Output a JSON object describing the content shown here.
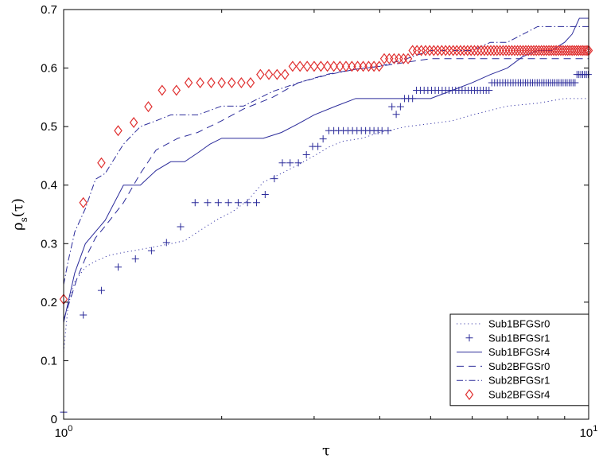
{
  "chart_data": {
    "type": "line",
    "title": "",
    "xlabel": "τ",
    "ylabel": "ρ",
    "ylabel_sub": "s",
    "ylabel_arg": "(τ)",
    "xscale": "log",
    "xlim": [
      1,
      10
    ],
    "ylim": [
      0,
      0.7
    ],
    "x_ticks": [
      {
        "value": 1,
        "base": "10",
        "exp": "0"
      },
      {
        "value": 10,
        "base": "10",
        "exp": "1"
      }
    ],
    "y_ticks": [
      0,
      0.1,
      0.2,
      0.3,
      0.4,
      0.5,
      0.6,
      0.7
    ],
    "y_tick_labels": [
      "0",
      "0.1",
      "0.2",
      "0.3",
      "0.4",
      "0.5",
      "0.6",
      "0.7"
    ],
    "grid": false,
    "legend": {
      "position": "bottom-right"
    },
    "series": [
      {
        "name": "Sub1BFGSr0",
        "style": "dotted",
        "color": "#3a3aa8",
        "x": [
          1.0,
          1.02,
          1.05,
          1.1,
          1.15,
          1.22,
          1.3,
          1.4,
          1.5,
          1.6,
          1.7,
          1.8,
          1.95,
          2.1,
          2.25,
          2.4,
          2.6,
          2.8,
          3.0,
          3.2,
          3.4,
          3.7,
          4.0,
          4.5,
          5.0,
          5.5,
          6.0,
          7.0,
          8.0,
          9.0,
          10.0
        ],
        "y": [
          0.115,
          0.195,
          0.235,
          0.26,
          0.27,
          0.28,
          0.285,
          0.29,
          0.295,
          0.3,
          0.305,
          0.32,
          0.34,
          0.355,
          0.375,
          0.405,
          0.42,
          0.435,
          0.45,
          0.465,
          0.475,
          0.48,
          0.49,
          0.5,
          0.505,
          0.51,
          0.52,
          0.535,
          0.54,
          0.548,
          0.548
        ]
      },
      {
        "name": "Sub1BFGSr1",
        "style": "marker-plus",
        "color": "#2b2b9a",
        "x": [
          1.0,
          1.09,
          1.18,
          1.27,
          1.37,
          1.47,
          1.57,
          1.67,
          1.78,
          1.88,
          1.97,
          2.06,
          2.15,
          2.24,
          2.33,
          2.42,
          2.52,
          2.61,
          2.7,
          2.8,
          2.9,
          2.98,
          3.05,
          3.12,
          3.2,
          3.27,
          3.34,
          3.41,
          3.48,
          3.55,
          3.62,
          3.69,
          3.76,
          3.83,
          3.9,
          3.97,
          4.04,
          4.15,
          4.22,
          4.3,
          4.38,
          4.46,
          4.54,
          4.62,
          4.7,
          4.78,
          4.86,
          4.94,
          5.02,
          5.1,
          5.18,
          5.26,
          5.34,
          5.42,
          5.5,
          5.58,
          5.66,
          5.74,
          5.82,
          5.9,
          5.98,
          6.06,
          6.14,
          6.22,
          6.3,
          6.38,
          6.46,
          6.54,
          6.62,
          6.7,
          6.78,
          6.86,
          6.94,
          7.02,
          7.1,
          7.18,
          7.26,
          7.34,
          7.42,
          7.5,
          7.58,
          7.66,
          7.74,
          7.82,
          7.9,
          7.98,
          8.06,
          8.14,
          8.22,
          8.3,
          8.38,
          8.46,
          8.54,
          8.62,
          8.7,
          8.78,
          8.86,
          8.94,
          9.02,
          9.1,
          9.18,
          9.26,
          9.34,
          9.42,
          9.5,
          9.58,
          9.66,
          9.74,
          9.82,
          9.9,
          9.98
        ],
        "y": [
          0.012,
          0.178,
          0.22,
          0.26,
          0.274,
          0.288,
          0.302,
          0.329,
          0.37,
          0.37,
          0.37,
          0.37,
          0.37,
          0.37,
          0.37,
          0.384,
          0.411,
          0.438,
          0.438,
          0.438,
          0.452,
          0.466,
          0.466,
          0.479,
          0.493,
          0.493,
          0.493,
          0.493,
          0.493,
          0.493,
          0.493,
          0.493,
          0.493,
          0.493,
          0.493,
          0.493,
          0.493,
          0.493,
          0.534,
          0.521,
          0.534,
          0.548,
          0.548,
          0.548,
          0.562,
          0.562,
          0.562,
          0.562,
          0.562,
          0.562,
          0.562,
          0.562,
          0.562,
          0.562,
          0.562,
          0.562,
          0.562,
          0.562,
          0.562,
          0.562,
          0.562,
          0.562,
          0.562,
          0.562,
          0.562,
          0.562,
          0.562,
          0.575,
          0.575,
          0.575,
          0.575,
          0.575,
          0.575,
          0.575,
          0.575,
          0.575,
          0.575,
          0.575,
          0.575,
          0.575,
          0.575,
          0.575,
          0.575,
          0.575,
          0.575,
          0.575,
          0.575,
          0.575,
          0.575,
          0.575,
          0.575,
          0.575,
          0.575,
          0.575,
          0.575,
          0.575,
          0.575,
          0.575,
          0.575,
          0.575,
          0.575,
          0.575,
          0.575,
          0.575,
          0.589,
          0.589,
          0.589,
          0.589,
          0.589,
          0.589,
          0.589
        ]
      },
      {
        "name": "Sub1BFGSr4",
        "style": "solid",
        "color": "#2b2b9a",
        "x": [
          1.0,
          1.02,
          1.05,
          1.1,
          1.2,
          1.3,
          1.4,
          1.5,
          1.6,
          1.7,
          1.8,
          1.9,
          2.0,
          2.2,
          2.4,
          2.6,
          2.8,
          3.0,
          3.3,
          3.6,
          4.0,
          4.5,
          5.0,
          5.5,
          6.0,
          6.5,
          7.0,
          7.5,
          8.0,
          8.5,
          9.0,
          9.3,
          9.6,
          10.0
        ],
        "y": [
          0.165,
          0.2,
          0.25,
          0.3,
          0.34,
          0.4,
          0.4,
          0.425,
          0.44,
          0.44,
          0.455,
          0.47,
          0.48,
          0.48,
          0.48,
          0.49,
          0.505,
          0.52,
          0.535,
          0.548,
          0.548,
          0.548,
          0.548,
          0.562,
          0.575,
          0.589,
          0.6,
          0.62,
          0.63,
          0.63,
          0.644,
          0.658,
          0.685,
          0.685
        ]
      },
      {
        "name": "Sub2BFGSr0",
        "style": "dashed",
        "color": "#2b2b9a",
        "x": [
          1.0,
          1.03,
          1.06,
          1.1,
          1.15,
          1.2,
          1.3,
          1.4,
          1.5,
          1.65,
          1.8,
          2.0,
          2.2,
          2.5,
          2.8,
          3.2,
          3.6,
          4.0,
          4.5,
          5.0,
          5.5,
          6.0,
          7.0,
          8.0,
          9.0,
          10.0
        ],
        "y": [
          0.17,
          0.205,
          0.24,
          0.275,
          0.31,
          0.33,
          0.37,
          0.42,
          0.46,
          0.48,
          0.49,
          0.51,
          0.53,
          0.55,
          0.575,
          0.59,
          0.598,
          0.603,
          0.61,
          0.616,
          0.616,
          0.616,
          0.616,
          0.616,
          0.616,
          0.616
        ]
      },
      {
        "name": "Sub2BFGSr1",
        "style": "dashdot",
        "color": "#2b2b9a",
        "x": [
          1.0,
          1.02,
          1.05,
          1.1,
          1.15,
          1.2,
          1.3,
          1.4,
          1.5,
          1.6,
          1.8,
          2.0,
          2.2,
          2.5,
          2.8,
          3.2,
          3.6,
          4.0,
          4.5,
          5.0,
          5.5,
          6.0,
          6.5,
          7.0,
          7.5,
          8.0,
          8.5,
          9.0,
          9.5,
          10.0
        ],
        "y": [
          0.23,
          0.27,
          0.32,
          0.36,
          0.41,
          0.42,
          0.47,
          0.5,
          0.51,
          0.52,
          0.52,
          0.535,
          0.535,
          0.56,
          0.575,
          0.589,
          0.598,
          0.603,
          0.616,
          0.63,
          0.63,
          0.63,
          0.644,
          0.644,
          0.658,
          0.671,
          0.671,
          0.671,
          0.671,
          0.671
        ]
      },
      {
        "name": "Sub2BFGSr4",
        "style": "marker-diamond",
        "color": "#e03030",
        "x": [
          1.0,
          1.09,
          1.18,
          1.27,
          1.36,
          1.45,
          1.54,
          1.64,
          1.73,
          1.82,
          1.91,
          2.0,
          2.09,
          2.18,
          2.27,
          2.37,
          2.46,
          2.55,
          2.64,
          2.73,
          2.82,
          2.91,
          3.0,
          3.09,
          3.18,
          3.27,
          3.36,
          3.45,
          3.54,
          3.63,
          3.72,
          3.81,
          3.9,
          3.99,
          4.08,
          4.17,
          4.26,
          4.35,
          4.44,
          4.53,
          4.62,
          4.71,
          4.8,
          4.89,
          4.98,
          5.07,
          5.16,
          5.25,
          5.34,
          5.43,
          5.52,
          5.61,
          5.7,
          5.79,
          5.88,
          5.97,
          6.06,
          6.15,
          6.24,
          6.33,
          6.42,
          6.51,
          6.6,
          6.69,
          6.78,
          6.87,
          6.96,
          7.05,
          7.14,
          7.23,
          7.32,
          7.41,
          7.5,
          7.59,
          7.68,
          7.77,
          7.86,
          7.95,
          8.04,
          8.13,
          8.22,
          8.31,
          8.4,
          8.49,
          8.58,
          8.67,
          8.76,
          8.85,
          8.94,
          9.03,
          9.12,
          9.21,
          9.3,
          9.39,
          9.48,
          9.57,
          9.66,
          9.75,
          9.84,
          9.93,
          10.0
        ],
        "y": [
          0.205,
          0.37,
          0.438,
          0.493,
          0.507,
          0.534,
          0.562,
          0.562,
          0.575,
          0.575,
          0.575,
          0.575,
          0.575,
          0.575,
          0.575,
          0.589,
          0.589,
          0.589,
          0.589,
          0.603,
          0.603,
          0.603,
          0.603,
          0.603,
          0.603,
          0.603,
          0.603,
          0.603,
          0.603,
          0.603,
          0.603,
          0.603,
          0.603,
          0.603,
          0.616,
          0.616,
          0.616,
          0.616,
          0.616,
          0.616,
          0.63,
          0.63,
          0.63,
          0.63,
          0.63,
          0.63,
          0.63,
          0.63,
          0.63,
          0.63,
          0.63,
          0.63,
          0.63,
          0.63,
          0.63,
          0.63,
          0.63,
          0.63,
          0.63,
          0.63,
          0.63,
          0.63,
          0.63,
          0.63,
          0.63,
          0.63,
          0.63,
          0.63,
          0.63,
          0.63,
          0.63,
          0.63,
          0.63,
          0.63,
          0.63,
          0.63,
          0.63,
          0.63,
          0.63,
          0.63,
          0.63,
          0.63,
          0.63,
          0.63,
          0.63,
          0.63,
          0.63,
          0.63,
          0.63,
          0.63,
          0.63,
          0.63,
          0.63,
          0.63,
          0.63,
          0.63,
          0.63,
          0.63,
          0.63,
          0.63,
          0.63
        ]
      }
    ]
  }
}
